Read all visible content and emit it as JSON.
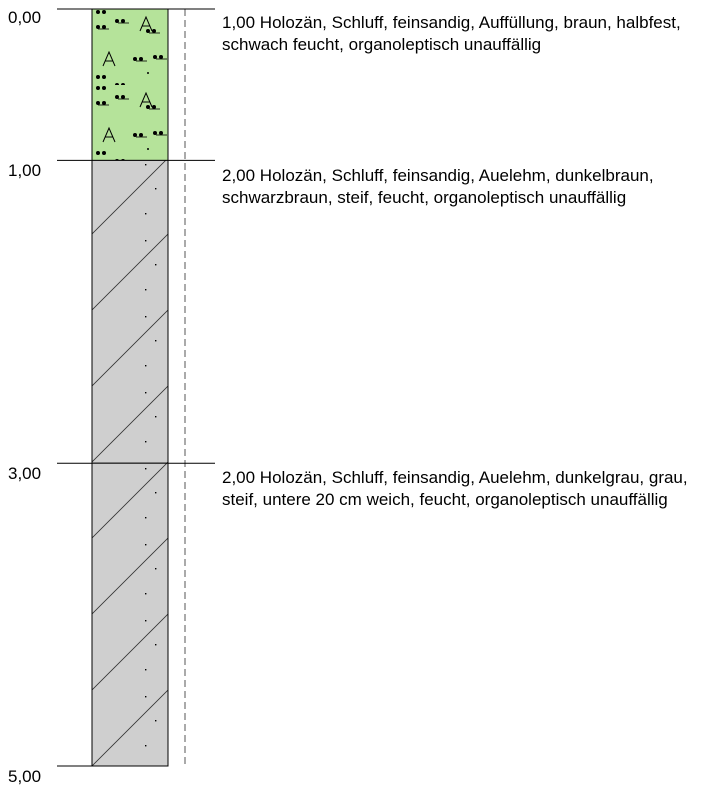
{
  "depths": [
    "0,00",
    "1,00",
    "3,00",
    "5,00"
  ],
  "layers": [
    {
      "fill": "#b5e39a",
      "pattern": "auffuellung",
      "description": "1,00  Holozän, Schluff, feinsandig, Auffüllung, braun, halbfest, schwach feucht, organoleptisch unauffällig",
      "top_m": 0,
      "bottom_m": 1
    },
    {
      "fill": "#cfcfcf",
      "pattern": "schluff-feinsandig",
      "description": "2,00  Holozän, Schluff, feinsandig, Auelehm, dunkelbraun, schwarzbraun, steif, feucht, organoleptisch unauffällig",
      "top_m": 1,
      "bottom_m": 3
    },
    {
      "fill": "#cfcfcf",
      "pattern": "schluff-feinsandig",
      "description": "2,00  Holozän, Schluff, feinsandig, Auelehm, dunkelgrau, grau, steif, untere 20 cm weich, feucht, organoleptisch unauffällig",
      "top_m": 3,
      "bottom_m": 5
    }
  ]
}
